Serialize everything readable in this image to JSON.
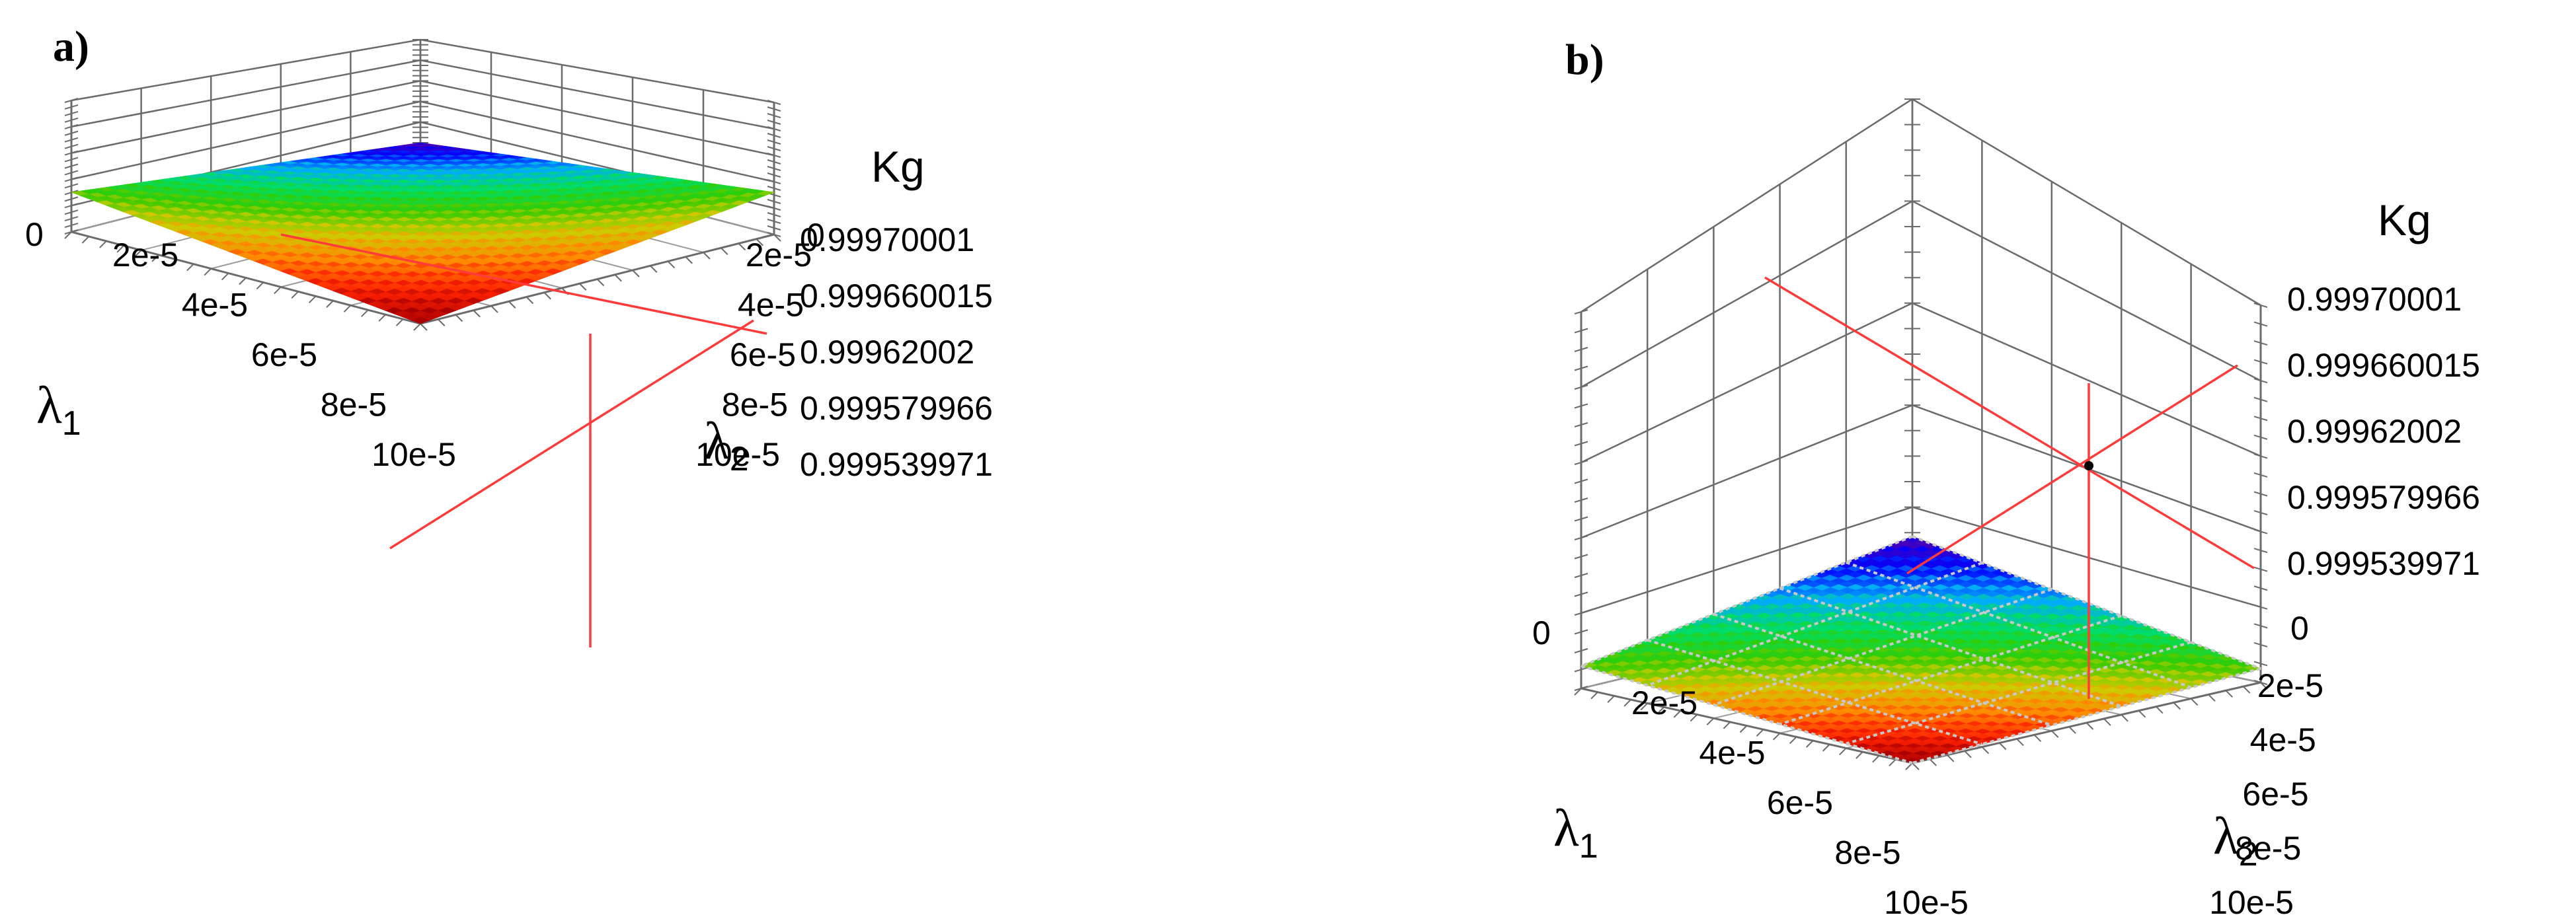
{
  "chart_data": [
    {
      "type": "surface3d",
      "panel_label": "a)",
      "x_axis_label_symbol": "λ",
      "x_axis_label_subscript": "1",
      "y_axis_label_symbol": "λ",
      "y_axis_label_subscript": "2",
      "z_axis_label": "Kg",
      "x_tick_labels": [
        "0",
        "2e-5",
        "4e-5",
        "6e-5",
        "8e-5",
        "10e-5"
      ],
      "y_tick_labels": [
        "0",
        "2e-5",
        "4e-5",
        "6e-5",
        "8e-5",
        "10e-5"
      ],
      "z_tick_labels": [
        "0.999539971",
        "0.999579966",
        "0.99962002",
        "0.999660015",
        "0.99970001"
      ],
      "xlim": [
        0,
        0.0001
      ],
      "ylim": [
        0,
        0.0001
      ],
      "surface": {
        "x": [
          0,
          0.0001
        ],
        "y": [
          0,
          0.0001
        ],
        "z": [
          [
            0.99962002,
            0.99958
          ],
          [
            0.99958,
            0.99954
          ]
        ]
      },
      "grid": true,
      "colormap": [
        "#5500aa",
        "#0000ff",
        "#00aaff",
        "#00dd66",
        "#33cc00",
        "#cccc00",
        "#ff8800",
        "#ff2200",
        "#aa0000"
      ]
    },
    {
      "type": "surface3d",
      "panel_label": "b)",
      "x_axis_label_symbol": "λ",
      "x_axis_label_subscript": "1",
      "y_axis_label_symbol": "λ",
      "y_axis_label_subscript": "2",
      "z_axis_label": "Kg",
      "x_tick_labels": [
        "0",
        "2e-5",
        "4e-5",
        "6e-5",
        "8e-5",
        "10e-5"
      ],
      "y_tick_labels": [
        "0",
        "2e-5",
        "4e-5",
        "6e-5",
        "8e-5",
        "10e-5"
      ],
      "z_tick_labels": [
        "0.999539971",
        "0.999579966",
        "0.99962002",
        "0.999660015",
        "0.99970001"
      ],
      "xlim": [
        0,
        0.0001
      ],
      "ylim": [
        0,
        0.0001
      ],
      "surface": {
        "x": [
          0,
          0.0001
        ],
        "y": [
          0,
          0.0001
        ],
        "z": [
          [
            0.99957,
            0.99955
          ],
          [
            0.99955,
            0.99954
          ]
        ]
      },
      "grid": true,
      "colormap": [
        "#5500aa",
        "#0000ff",
        "#00aaff",
        "#00dd66",
        "#33cc00",
        "#cccc00",
        "#ff8800",
        "#ff2200",
        "#aa0000"
      ]
    }
  ]
}
